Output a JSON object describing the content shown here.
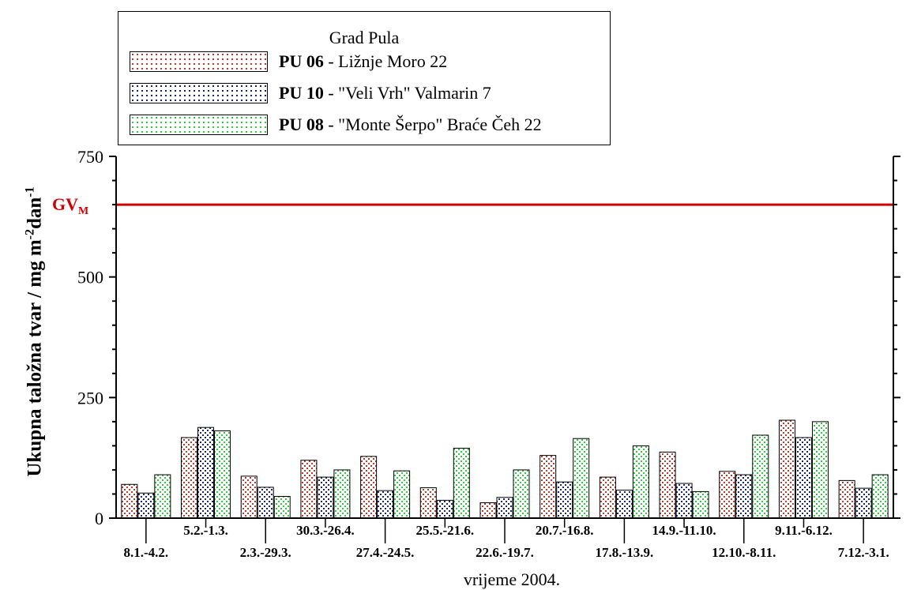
{
  "legend": {
    "title": "Grad Pula",
    "items": [
      {
        "code": "PU 06",
        "rest": " - Ližnje Moro 22",
        "color": "#c0392b"
      },
      {
        "code": "PU 10",
        "rest": " - \"Veli Vrh\" Valmarin 7",
        "color": "#1a237e"
      },
      {
        "code": "PU 08",
        "rest": " - \"Monte Šerpo\" Braće Čeh 22",
        "color": "#2ecc40"
      }
    ]
  },
  "reference_line": {
    "label": "GV",
    "subscript": "M",
    "value": 650,
    "color": "#d00000"
  },
  "chart_data": {
    "type": "bar",
    "title": "",
    "xlabel": "vrijeme 2004.",
    "ylabel": "Ukupna taložna tvar / mg m",
    "ylabel_sup1": "-2",
    "ylabel_mid": "dan",
    "ylabel_sup2": "-1",
    "ylim": [
      0,
      750
    ],
    "yticks": [
      0,
      250,
      500,
      750
    ],
    "grid": false,
    "legend_position": "top-left",
    "categories": [
      "8.1.-4.2.",
      "5.2.-1.3.",
      "2.3.-29.3.",
      "30.3.-26.4.",
      "27.4.-24.5.",
      "25.5.-21.6.",
      "22.6.-19.7.",
      "20.7.-16.8.",
      "17.8.-13.9.",
      "14.9.-11.10.",
      "12.10.-8.11.",
      "9.11.-6.12.",
      "7.12.-3.1."
    ],
    "series": [
      {
        "name": "PU 06 - Ližnje Moro 22",
        "values": [
          70,
          167,
          87,
          120,
          128,
          63,
          32,
          130,
          85,
          137,
          97,
          203,
          78
        ]
      },
      {
        "name": "PU 10 - \"Veli Vrh\" Valmarin 7",
        "values": [
          52,
          188,
          64,
          85,
          57,
          37,
          43,
          75,
          58,
          72,
          90,
          167,
          62
        ]
      },
      {
        "name": "PU 08 - \"Monte Šerpo\" Braće Čeh 22",
        "values": [
          90,
          181,
          45,
          100,
          98,
          145,
          100,
          165,
          150,
          55,
          172,
          200,
          90
        ]
      }
    ]
  }
}
